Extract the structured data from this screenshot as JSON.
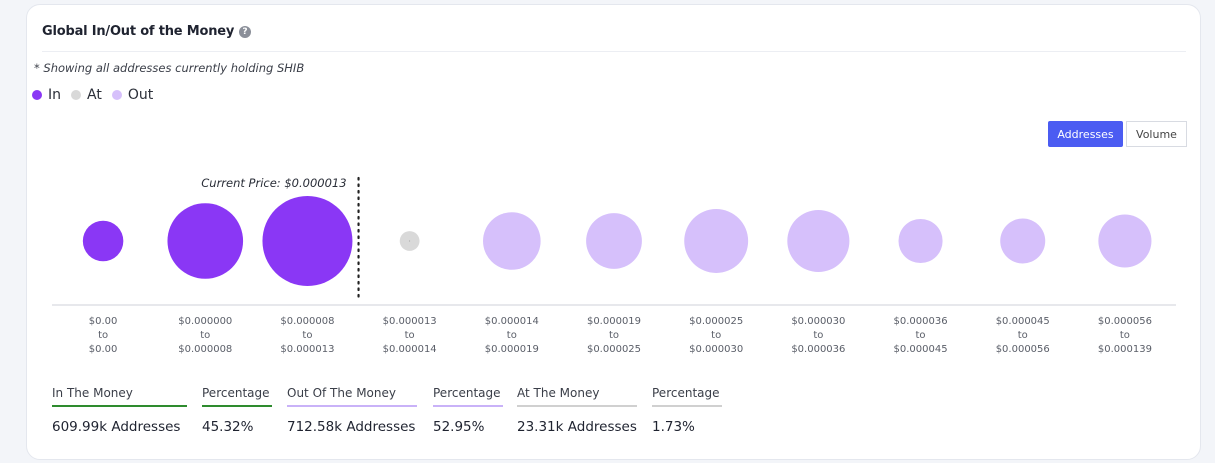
{
  "title": "Global In/Out of the Money",
  "help_icon": "question-circle-icon",
  "note": "* Showing all addresses currently holding SHIB",
  "legend": [
    {
      "label": "In",
      "color": "#8a37f5"
    },
    {
      "label": "At",
      "color": "#d9d9d9"
    },
    {
      "label": "Out",
      "color": "#d6c0fb"
    }
  ],
  "toggle": {
    "addresses": "Addresses",
    "volume": "Volume",
    "selected": "Addresses"
  },
  "chart_data": {
    "type": "bubble",
    "current_price_label": "Current Price: $0.000013",
    "current_price_after_index": 3,
    "colors": {
      "In": "#8a37f5",
      "At": "#d9d9d9",
      "Out": "#d6c0fb"
    },
    "buckets": [
      {
        "from": "$0.00",
        "to": "$0.00",
        "status": "In",
        "relative_size": 0.45
      },
      {
        "from": "$0.000000",
        "to": "$0.000008",
        "status": "In",
        "relative_size": 0.84
      },
      {
        "from": "$0.000008",
        "to": "$0.000013",
        "status": "In",
        "relative_size": 1.0
      },
      {
        "from": "$0.000013",
        "to": "$0.000014",
        "status": "At",
        "relative_size": 0.22
      },
      {
        "from": "$0.000014",
        "to": "$0.000019",
        "status": "Out",
        "relative_size": 0.64
      },
      {
        "from": "$0.000019",
        "to": "$0.000025",
        "status": "Out",
        "relative_size": 0.62
      },
      {
        "from": "$0.000025",
        "to": "$0.000030",
        "status": "Out",
        "relative_size": 0.71
      },
      {
        "from": "$0.000030",
        "to": "$0.000036",
        "status": "Out",
        "relative_size": 0.69
      },
      {
        "from": "$0.000036",
        "to": "$0.000045",
        "status": "Out",
        "relative_size": 0.49
      },
      {
        "from": "$0.000045",
        "to": "$0.000056",
        "status": "Out",
        "relative_size": 0.5
      },
      {
        "from": "$0.000056",
        "to": "$0.000139",
        "status": "Out",
        "relative_size": 0.59
      }
    ],
    "range_separator": "to"
  },
  "stats": [
    {
      "label": "In The Money",
      "value": "609.99k Addresses",
      "color": "#2e8b2e"
    },
    {
      "label": "Percentage",
      "value": "45.32%",
      "color": "#2e8b2e"
    },
    {
      "label": "Out Of The Money",
      "value": "712.58k Addresses",
      "color": "#c9b2f8"
    },
    {
      "label": "Percentage",
      "value": "52.95%",
      "color": "#c9b2f8"
    },
    {
      "label": "At The Money",
      "value": "23.31k Addresses",
      "color": "#d0d0d0"
    },
    {
      "label": "Percentage",
      "value": "1.73%",
      "color": "#d0d0d0"
    }
  ]
}
